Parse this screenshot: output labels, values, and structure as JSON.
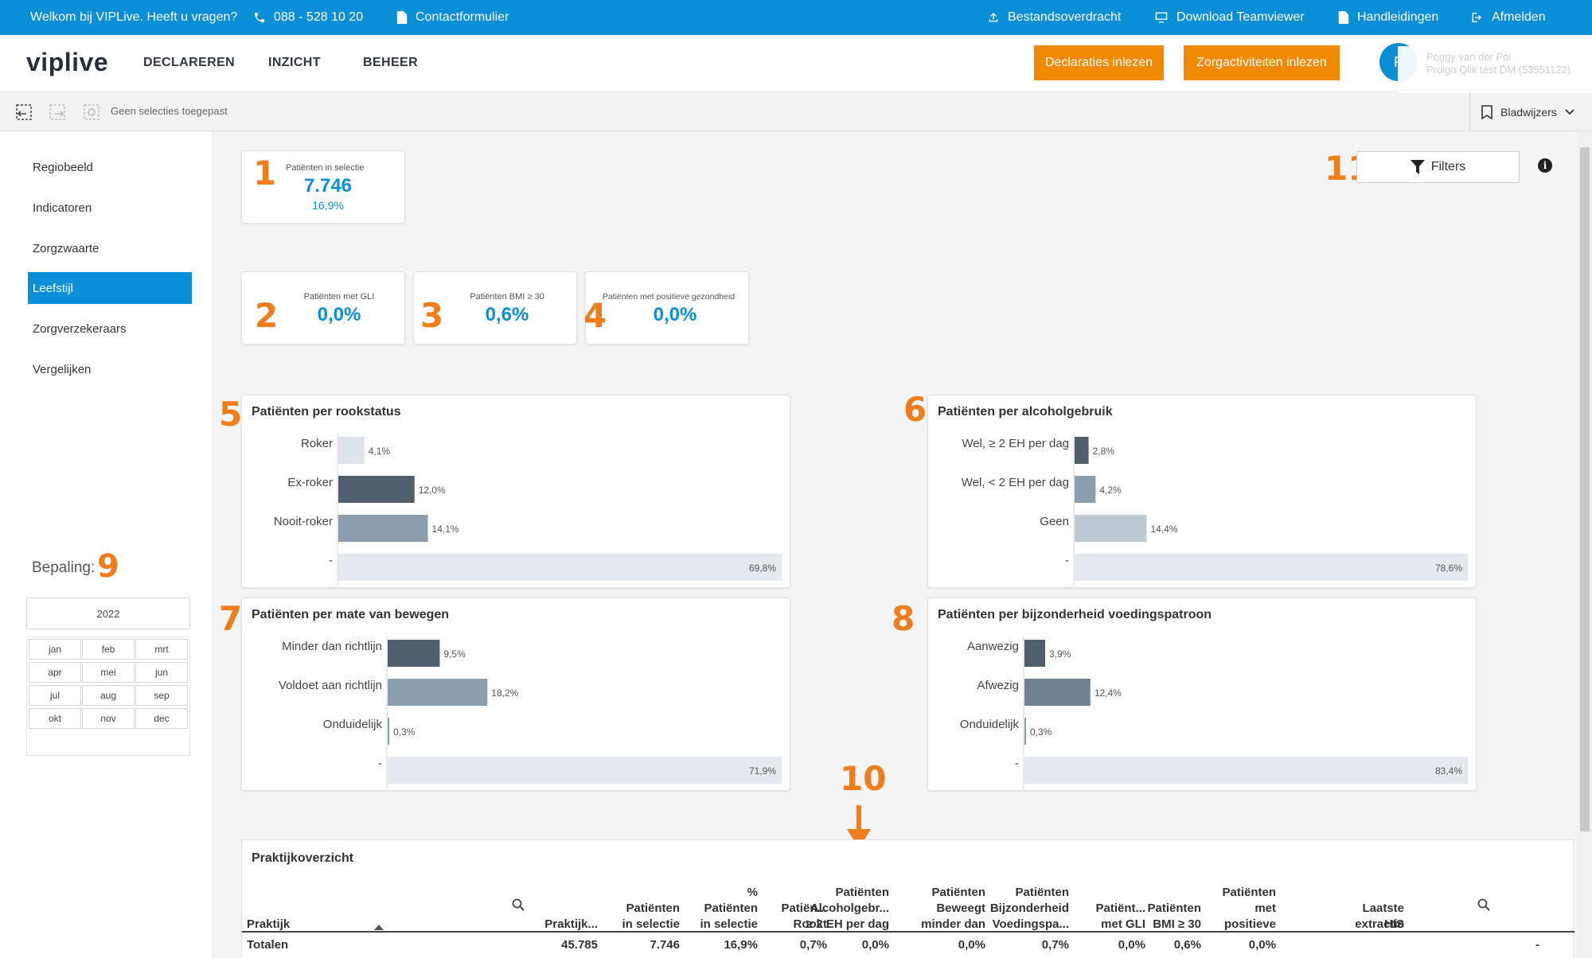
{
  "topbar": {
    "welcome": "Welkom bij VIPLive. Heeft u vragen?",
    "phone": "088 - 528 10 20",
    "contact": "Contactformulier",
    "file_transfer": "Bestandsoverdracht",
    "teamviewer": "Download Teamviewer",
    "manuals": "Handleidingen",
    "logout": "Afmelden"
  },
  "header": {
    "logo": "viplive",
    "nav": [
      "DECLAREREN",
      "INZICHT",
      "BEHEER"
    ],
    "btn_declaraties": "Declaraties inlezen",
    "btn_zorgactiviteiten": "Zorgactiviteiten inlezen",
    "avatar_initial": "P",
    "user_name": "Peggy van der Pol",
    "user_org": "Prolga Qlik test DM (53551122)"
  },
  "selection_bar": {
    "text": "Geen selecties toegepast",
    "bookmarks": "Bladwijzers"
  },
  "sidebar": {
    "items": [
      "Regiobeeld",
      "Indicatoren",
      "Zorgzwaarte",
      "Leefstijl",
      "Zorgverzekeraars",
      "Vergelijken"
    ],
    "active": "Leefstijl",
    "bepaling_label": "Bepaling:",
    "year": "2022",
    "months": [
      "jan",
      "feb",
      "mrt",
      "apr",
      "mei",
      "jun",
      "jul",
      "aug",
      "sep",
      "okt",
      "nov",
      "dec"
    ]
  },
  "annotations": [
    "1",
    "2",
    "3",
    "4",
    "5",
    "6",
    "7",
    "8",
    "9",
    "10",
    "11"
  ],
  "kpis": {
    "selectie": {
      "label": "Patiënten in selectie",
      "value": "7.746",
      "sub": "16,9%"
    },
    "gli": {
      "label": "Patiënten met GLI",
      "value": "0,0%"
    },
    "bmi": {
      "label": "Patiënten BMI ≥ 30",
      "value": "0,6%"
    },
    "gezond": {
      "label": "Patiënten met positieve gezondheid",
      "value": "0,0%"
    }
  },
  "filters": {
    "label": "Filters"
  },
  "colors": {
    "accent": "#0a8fd6",
    "orange": "#f18a00",
    "annotation": "#f07d1c",
    "bar_colors": [
      "#dde3ea",
      "#4f5f6e",
      "#8a9ead",
      "#e4e9ef"
    ]
  },
  "chart_data": [
    {
      "type": "bar",
      "orientation": "horizontal",
      "title": "Patiënten per rookstatus",
      "categories": [
        "Roker",
        "Ex-roker",
        "Nooit-roker",
        "-"
      ],
      "values": [
        4.1,
        12.0,
        14.1,
        69.8
      ],
      "labels": [
        "4,1%",
        "12,0%",
        "14,1%",
        "69,8%"
      ],
      "colors": [
        "#dde3ea",
        "#4f5f6e",
        "#8a9ead",
        "#e4e9ef"
      ],
      "xlim": [
        0,
        69.8
      ]
    },
    {
      "type": "bar",
      "orientation": "horizontal",
      "title": "Patiënten per alcoholgebruik",
      "categories": [
        "Wel, ≥ 2 EH per dag",
        "Wel, < 2 EH per dag",
        "Geen",
        "-"
      ],
      "values": [
        2.8,
        4.2,
        14.4,
        78.6
      ],
      "labels": [
        "2,8%",
        "4,2%",
        "14,4%",
        "78,6%"
      ],
      "colors": [
        "#4f5f6e",
        "#8a9ead",
        "#bcc8d2",
        "#e4e9ef"
      ],
      "xlim": [
        0,
        78.6
      ]
    },
    {
      "type": "bar",
      "orientation": "horizontal",
      "title": "Patiënten per mate van bewegen",
      "categories": [
        "Minder dan richtlijn",
        "Voldoet aan richtlijn",
        "Onduidelijk",
        "-"
      ],
      "values": [
        9.5,
        18.2,
        0.3,
        71.9
      ],
      "labels": [
        "9,5%",
        "18,2%",
        "0,3%",
        "71,9%"
      ],
      "colors": [
        "#4f5f6e",
        "#8a9ead",
        "#8a9ead",
        "#e4e9ef"
      ],
      "xlim": [
        0,
        71.9
      ]
    },
    {
      "type": "bar",
      "orientation": "horizontal",
      "title": "Patiënten per bijzonderheid voedingspatroon",
      "categories": [
        "Aanwezig",
        "Afwezig",
        "Onduidelijk",
        "-"
      ],
      "values": [
        3.9,
        12.4,
        0.3,
        83.4
      ],
      "labels": [
        "3,9%",
        "12,4%",
        "0,3%",
        "83,4%"
      ],
      "colors": [
        "#4f5f6e",
        "#6e8190",
        "#8a9ead",
        "#e4e9ef"
      ],
      "xlim": [
        0,
        83.4
      ]
    }
  ],
  "table": {
    "title": "Praktijkoverzicht",
    "columns": [
      [
        "Praktijk"
      ],
      [
        "Praktijk..."
      ],
      [
        "Patiënten",
        "in selectie"
      ],
      [
        "%",
        "Patiënten",
        "in selectie"
      ],
      [
        "Patiën...",
        "Rookt"
      ],
      [
        "Patiënten",
        "Alcoholgebr...",
        "≥ 2 EH per dag"
      ],
      [
        "Patiënten",
        "Beweegt",
        "minder dan"
      ],
      [
        "Patiënten",
        "Bijzonderheid",
        "Voedingspa..."
      ],
      [
        "Patiënt...",
        "met GLI"
      ],
      [
        "Patiënten",
        "BMI ≥ 30"
      ],
      [
        "Patiënten",
        "met",
        "positieve"
      ],
      [
        "HIS"
      ],
      [
        "Laatste",
        "extractie"
      ]
    ],
    "totals": [
      "Totalen",
      "45.785",
      "7.746",
      "16,9%",
      "0,7%",
      "0,0%",
      "0,0%",
      "0,7%",
      "0,0%",
      "0,6%",
      "0,0%",
      "",
      "-"
    ]
  }
}
